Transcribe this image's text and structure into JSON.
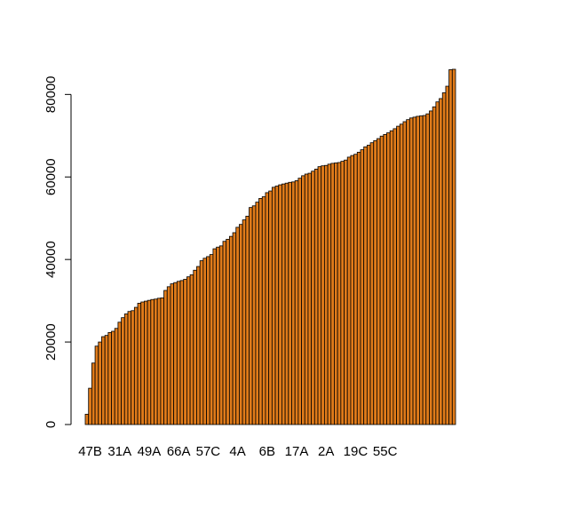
{
  "chart_data": {
    "type": "bar",
    "title": "",
    "xlabel": "",
    "ylabel": "",
    "ylim": [
      0,
      86100
    ],
    "yticks": [
      0,
      20000,
      40000,
      60000,
      80000
    ],
    "ytick_labels": [
      "0",
      "20000",
      "40000",
      "60000",
      "80000"
    ],
    "xtick_labels": [
      {
        "label": "47B",
        "index": 1
      },
      {
        "label": "31A",
        "index": 10
      },
      {
        "label": "49A",
        "index": 19
      },
      {
        "label": "66A",
        "index": 28
      },
      {
        "label": "57C",
        "index": 37
      },
      {
        "label": "4A",
        "index": 46
      },
      {
        "label": "6B",
        "index": 55
      },
      {
        "label": "17A",
        "index": 64
      },
      {
        "label": "2A",
        "index": 73
      },
      {
        "label": "19C",
        "index": 82
      },
      {
        "label": "55C",
        "index": 91
      }
    ],
    "bar_color": "#e07b1a",
    "edge_color": "#000000",
    "grid": false,
    "values": [
      2500,
      8800,
      14900,
      19000,
      20000,
      21300,
      21600,
      22300,
      22600,
      23300,
      24800,
      25900,
      26800,
      27400,
      27600,
      28400,
      29400,
      29700,
      29900,
      30100,
      30300,
      30400,
      30600,
      30700,
      32500,
      33400,
      34100,
      34400,
      34700,
      34900,
      35200,
      35800,
      36300,
      37400,
      38300,
      39700,
      40300,
      40700,
      41200,
      42600,
      43000,
      43300,
      44400,
      44900,
      45600,
      46500,
      47800,
      48500,
      49600,
      50500,
      52600,
      53000,
      53900,
      54800,
      55200,
      56200,
      56600,
      57500,
      57800,
      58100,
      58300,
      58500,
      58700,
      58800,
      59100,
      59700,
      60300,
      60700,
      60900,
      61400,
      61900,
      62500,
      62700,
      62800,
      63100,
      63300,
      63400,
      63500,
      63800,
      64100,
      64800,
      65200,
      65500,
      66000,
      66600,
      67300,
      67700,
      68300,
      68800,
      69300,
      69900,
      70300,
      70700,
      71200,
      71700,
      72300,
      72800,
      73400,
      73900,
      74300,
      74500,
      74700,
      74800,
      74900,
      75300,
      76000,
      77000,
      78200,
      79000,
      80400,
      82000,
      86000,
      86100
    ]
  }
}
